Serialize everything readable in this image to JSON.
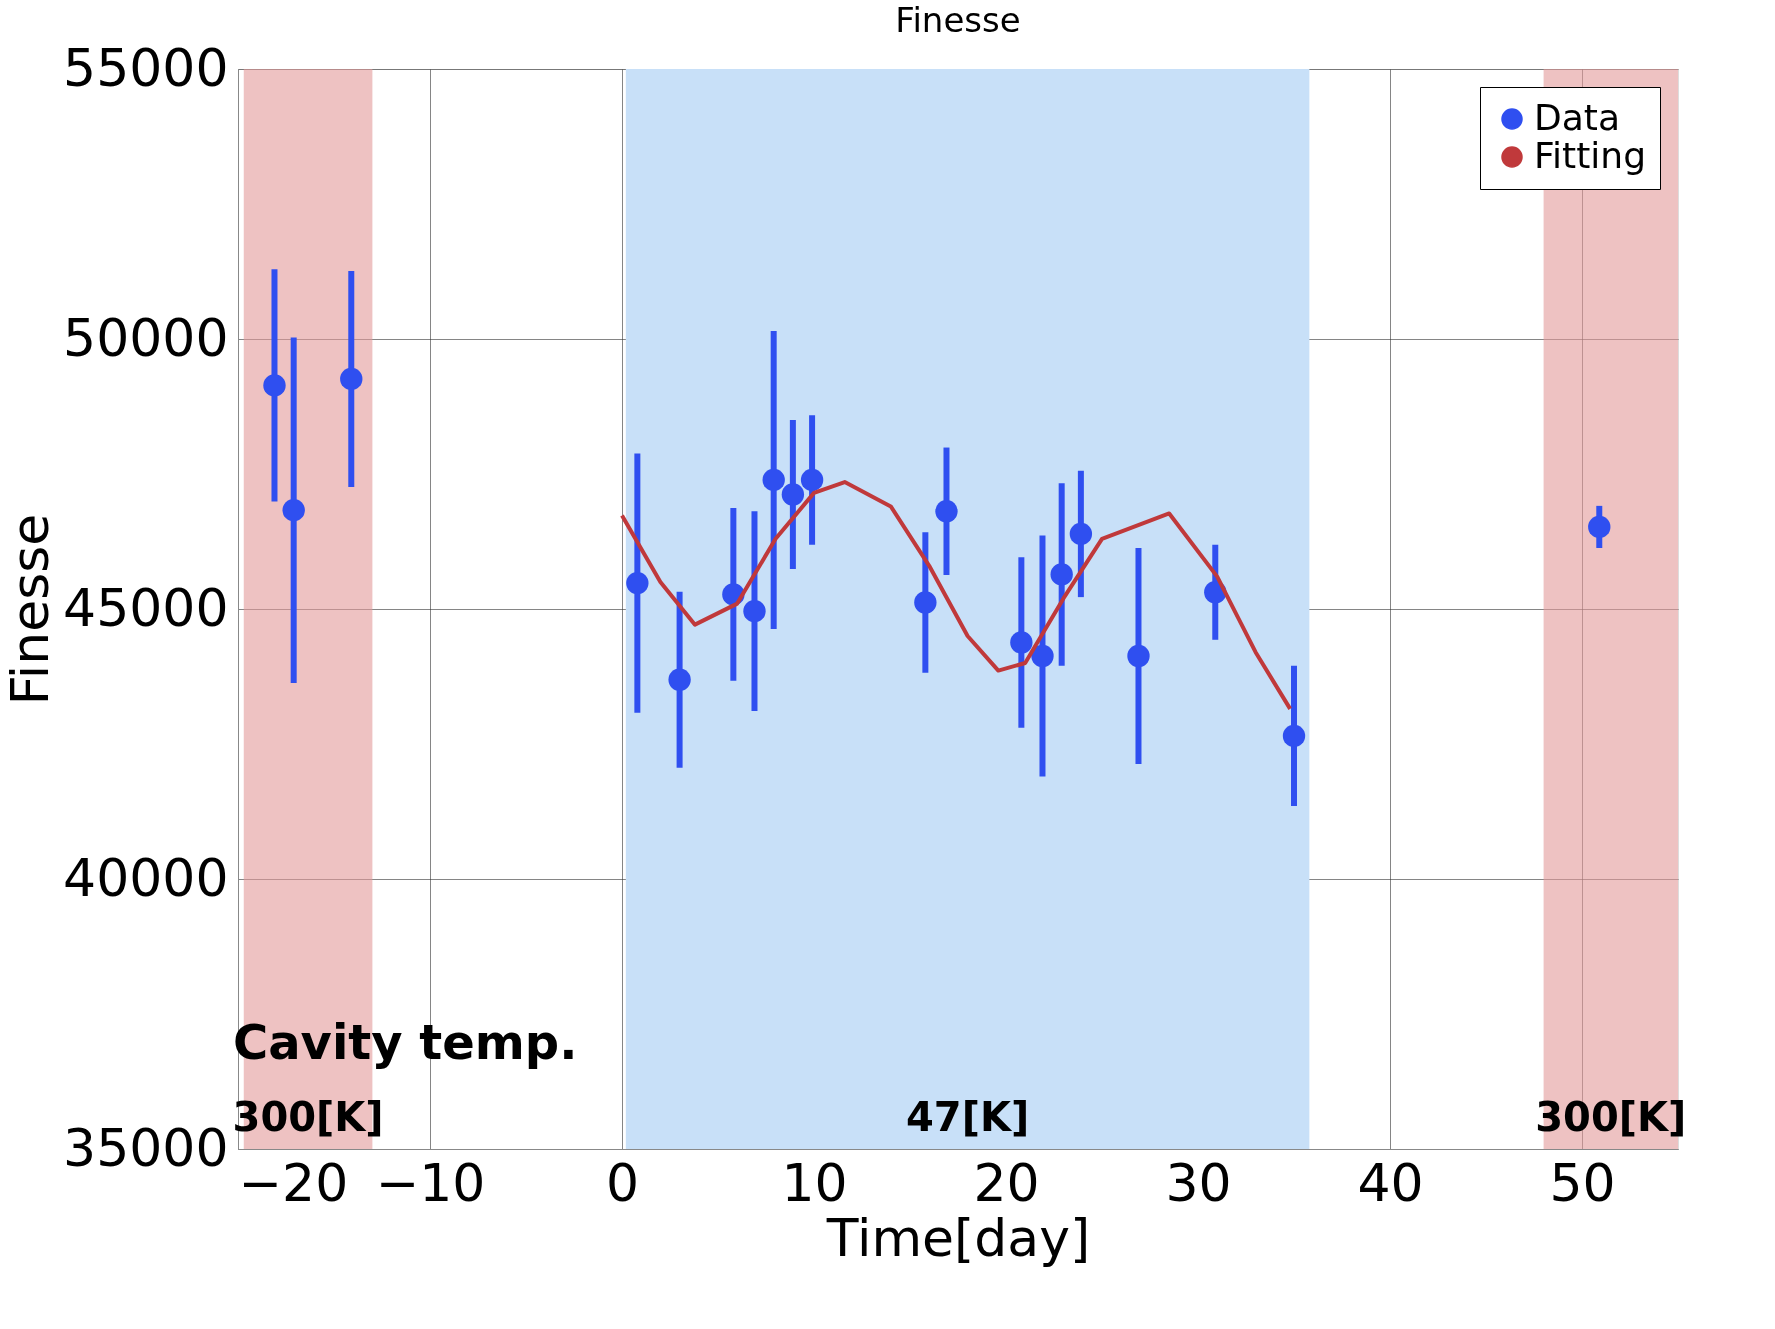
{
  "chart_data": {
    "type": "scatter",
    "title": "Finesse",
    "xlabel": "Time[day]",
    "ylabel": "Finesse",
    "xlim": [
      -20,
      55
    ],
    "xticks": [
      -20,
      -10,
      0,
      10,
      20,
      30,
      40,
      50
    ],
    "ylim": [
      35000,
      55000
    ],
    "yticks": [
      35000,
      40000,
      45000,
      50000,
      55000
    ],
    "grid": true,
    "legend": "top right",
    "series": [
      {
        "name": "Data",
        "type": "scatter",
        "marker": "circle",
        "color": "#2f4ff0",
        "x": [
          -18.1,
          -17.1,
          -14.1,
          0.8,
          3.0,
          5.8,
          6.9,
          7.9,
          8.9,
          9.9,
          15.8,
          16.9,
          20.8,
          21.9,
          22.9,
          23.9,
          26.9,
          30.9,
          35.0,
          50.9
        ],
        "values": [
          49140,
          46830,
          49260,
          45480,
          43690,
          45270,
          44960,
          47390,
          47120,
          47390,
          45120,
          46810,
          44380,
          44130,
          45640,
          46390,
          44130,
          45310,
          42650,
          46520
        ],
        "errors": [
          2150,
          3200,
          2000,
          2400,
          1630,
          1600,
          1850,
          2760,
          1380,
          1200,
          1300,
          1180,
          1580,
          2230,
          1690,
          1170,
          2000,
          880,
          1300,
          390
        ]
      },
      {
        "name": "Fitting",
        "type": "line",
        "color": "#c0393b",
        "line_style": "solid",
        "x": [
          0,
          2,
          3.8,
          6,
          8,
          10,
          11.6,
          14,
          16,
          18,
          19.6,
          21,
          23,
          25,
          28.5,
          31,
          33,
          34.8
        ],
        "values": [
          46730,
          45500,
          44710,
          45100,
          46300,
          47150,
          47350,
          46900,
          45800,
          44500,
          43860,
          44000,
          45200,
          46300,
          46770,
          45600,
          44200,
          43150
        ]
      }
    ],
    "bands": [
      {
        "axis": "x",
        "from": -19.7,
        "to": -13,
        "label": "300[K]",
        "color": "#e39a9a"
      },
      {
        "axis": "x",
        "from": 0.2,
        "to": 35.8,
        "label": "47[K]",
        "color": "#c8e0f8"
      },
      {
        "axis": "x",
        "from": 48,
        "to": 55,
        "label": "300[K]",
        "color": "#e39a9a"
      }
    ],
    "annotations": [
      "Cavity temp."
    ]
  }
}
